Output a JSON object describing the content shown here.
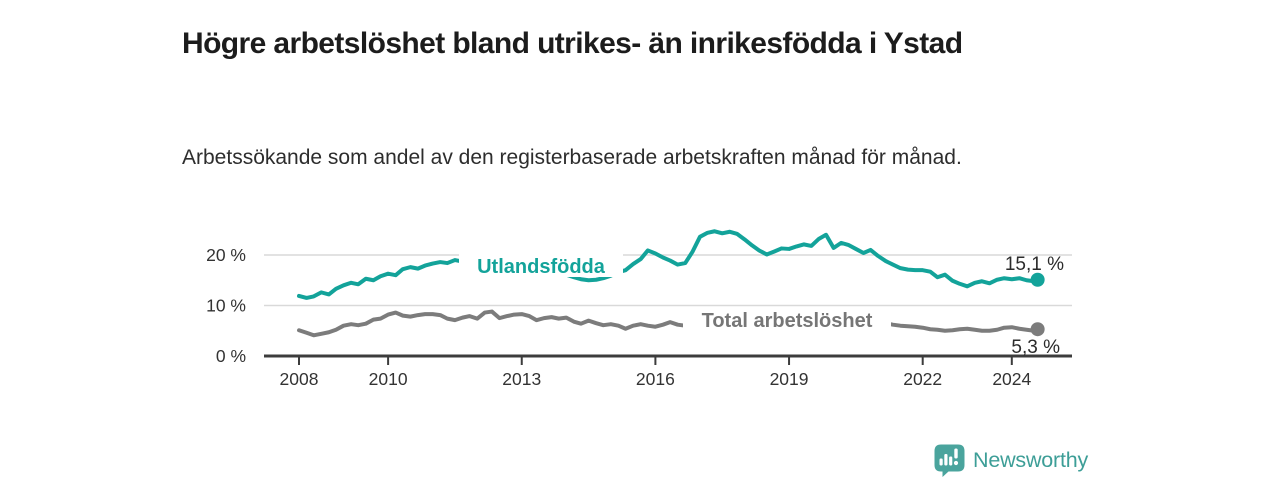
{
  "header": {
    "title": "Högre arbetslöshet bland utrikes- än inrikesfödda i Ystad",
    "subtitle": "Arbetssökande som andel av den registerbaserade arbetskraften månad för månad."
  },
  "footer": {
    "brand": "Newsworthy",
    "logo_icon": "newsworthy-chart-bubble-icon"
  },
  "colors": {
    "accent_teal": "#13a39a",
    "gray_line": "#7c7c7c",
    "gray_label": "#767676",
    "logo_teal": "#4aa49d",
    "axis": "#3c3c3c",
    "grid": "#d9d9d9",
    "text_dark": "#1c1c1c"
  },
  "chart_data": {
    "type": "line",
    "title": "Högre arbetslöshet bland utrikes- än inrikesfödda i Ystad",
    "subtitle": "Arbetssökande som andel av den registerbaserade arbetskraften månad för månad.",
    "unit": "%",
    "grid": "horizontal",
    "legend_position": "inline-labels",
    "ylim": [
      0,
      25
    ],
    "xlim": [
      2007.2,
      2025.4
    ],
    "y_ticks": [
      {
        "label": "0 %",
        "value": 0
      },
      {
        "label": "10 %",
        "value": 10
      },
      {
        "label": "20 %",
        "value": 20
      }
    ],
    "x_ticks": [
      {
        "label": "2008",
        "value": 2008
      },
      {
        "label": "2010",
        "value": 2010
      },
      {
        "label": "2013",
        "value": 2013
      },
      {
        "label": "2016",
        "value": 2016
      },
      {
        "label": "2019",
        "value": 2019
      },
      {
        "label": "2022",
        "value": 2022
      },
      {
        "label": "2024",
        "value": 2024
      }
    ],
    "x": [
      2008,
      2008.17,
      2008.33,
      2008.5,
      2008.67,
      2008.83,
      2009,
      2009.17,
      2009.33,
      2009.5,
      2009.67,
      2009.83,
      2010,
      2010.17,
      2010.33,
      2010.5,
      2010.67,
      2010.83,
      2011,
      2011.17,
      2011.33,
      2011.5,
      2011.67,
      2011.83,
      2012,
      2012.17,
      2012.33,
      2012.5,
      2012.67,
      2012.83,
      2013,
      2013.17,
      2013.33,
      2013.5,
      2013.67,
      2013.83,
      2014,
      2014.17,
      2014.33,
      2014.5,
      2014.67,
      2014.83,
      2015,
      2015.17,
      2015.33,
      2015.5,
      2015.67,
      2015.83,
      2016,
      2016.17,
      2016.33,
      2016.5,
      2016.67,
      2016.83,
      2017,
      2017.17,
      2017.33,
      2017.5,
      2017.67,
      2017.83,
      2018,
      2018.17,
      2018.33,
      2018.5,
      2018.67,
      2018.83,
      2019,
      2019.17,
      2019.33,
      2019.5,
      2019.67,
      2019.83,
      2020,
      2020.17,
      2020.33,
      2020.5,
      2020.67,
      2020.83,
      2021,
      2021.17,
      2021.33,
      2021.5,
      2021.67,
      2021.83,
      2022,
      2022.17,
      2022.33,
      2022.5,
      2022.67,
      2022.83,
      2023,
      2023.17,
      2023.33,
      2023.5,
      2023.67,
      2023.83,
      2024,
      2024.17,
      2024.33,
      2024.5,
      2024.58
    ],
    "series": [
      {
        "name": "Utlandsfödda",
        "color": "#13a39a",
        "end_label": "15,1 %",
        "end_value": 15.1,
        "values": [
          11.9,
          11.5,
          11.8,
          12.6,
          12.2,
          13.3,
          14.0,
          14.5,
          14.2,
          15.3,
          15.0,
          15.8,
          16.3,
          16.0,
          17.2,
          17.6,
          17.3,
          17.9,
          18.3,
          18.6,
          18.4,
          19.0,
          18.7,
          18.4,
          18.6,
          18.8,
          18.5,
          18.2,
          18.4,
          18.0,
          17.8,
          17.5,
          17.2,
          16.9,
          16.6,
          16.4,
          16.1,
          15.6,
          15.2,
          15.0,
          15.1,
          15.4,
          15.9,
          16.6,
          17.0,
          18.2,
          19.2,
          20.9,
          20.3,
          19.5,
          18.9,
          18.1,
          18.4,
          20.6,
          23.6,
          24.4,
          24.7,
          24.3,
          24.6,
          24.2,
          23.1,
          21.9,
          20.9,
          20.1,
          20.7,
          21.3,
          21.2,
          21.7,
          22.1,
          21.8,
          23.2,
          24.0,
          21.4,
          22.4,
          22.0,
          21.2,
          20.4,
          21.0,
          19.8,
          18.8,
          18.1,
          17.4,
          17.1,
          17.0,
          17.0,
          16.7,
          15.6,
          16.1,
          14.9,
          14.3,
          13.8,
          14.5,
          14.8,
          14.4,
          15.1,
          15.4,
          15.2,
          15.4,
          15.0,
          14.8,
          15.1
        ]
      },
      {
        "name": "Total arbetslöshet",
        "color": "#7c7c7c",
        "end_label": "5,3 %",
        "end_value": 5.3,
        "values": [
          5.1,
          4.6,
          4.1,
          4.4,
          4.7,
          5.2,
          6.0,
          6.3,
          6.1,
          6.4,
          7.2,
          7.4,
          8.2,
          8.6,
          8.0,
          7.8,
          8.1,
          8.3,
          8.3,
          8.1,
          7.4,
          7.1,
          7.6,
          7.9,
          7.4,
          8.6,
          8.8,
          7.5,
          7.9,
          8.2,
          8.3,
          7.9,
          7.1,
          7.5,
          7.7,
          7.4,
          7.6,
          6.8,
          6.4,
          7.0,
          6.5,
          6.1,
          6.3,
          6.0,
          5.4,
          6.0,
          6.3,
          6.0,
          5.8,
          6.2,
          6.7,
          6.2,
          6.0,
          6.4,
          6.9,
          7.2,
          7.0,
          6.8,
          6.9,
          7.1,
          6.8,
          6.6,
          6.4,
          6.6,
          6.8,
          6.7,
          6.6,
          6.8,
          6.9,
          6.7,
          6.8,
          6.9,
          6.7,
          7.3,
          7.6,
          7.4,
          7.2,
          7.0,
          6.8,
          6.5,
          6.2,
          6.0,
          5.9,
          5.8,
          5.6,
          5.3,
          5.2,
          5.0,
          5.1,
          5.3,
          5.4,
          5.2,
          5.0,
          5.0,
          5.2,
          5.6,
          5.7,
          5.4,
          5.2,
          5.0,
          5.3
        ]
      }
    ]
  }
}
